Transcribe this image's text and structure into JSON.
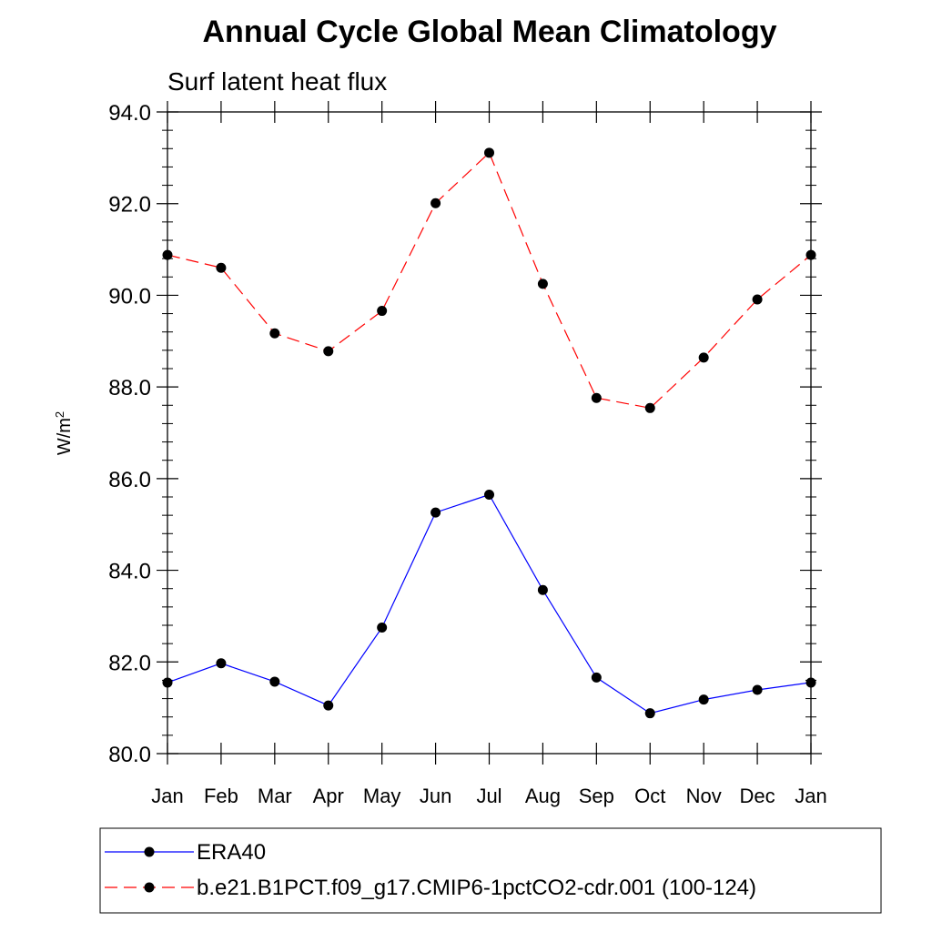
{
  "chart_data": {
    "type": "line",
    "title": "Annual Cycle Global Mean Climatology",
    "subtitle": "Surf latent heat flux",
    "xlabel": "",
    "ylabel": "W/m",
    "ylabel_superscript": "2",
    "ylim": [
      80.0,
      94.0
    ],
    "yticks": [
      "80.0",
      "82.0",
      "84.0",
      "86.0",
      "88.0",
      "90.0",
      "92.0",
      "94.0"
    ],
    "categories": [
      "Jan",
      "Feb",
      "Mar",
      "Apr",
      "May",
      "Jun",
      "Jul",
      "Aug",
      "Sep",
      "Oct",
      "Nov",
      "Dec",
      "Jan"
    ],
    "grid": false,
    "legend_position": "bottom",
    "series": [
      {
        "name": "ERA40",
        "color": "#0000ff",
        "line_style": "solid",
        "marker": "filled-circle",
        "values": [
          81.55,
          81.97,
          81.57,
          81.05,
          82.75,
          85.26,
          85.65,
          83.57,
          81.66,
          80.88,
          81.18,
          81.39,
          81.55
        ]
      },
      {
        "name": "b.e21.B1PCT.f09_g17.CMIP6-1pctCO2-cdr.001 (100-124)",
        "color": "#ff0000",
        "line_style": "dashed",
        "marker": "filled-circle",
        "values": [
          90.88,
          90.6,
          89.17,
          88.78,
          89.66,
          92.01,
          93.11,
          90.25,
          87.76,
          87.54,
          88.64,
          89.91,
          90.88
        ]
      }
    ]
  }
}
